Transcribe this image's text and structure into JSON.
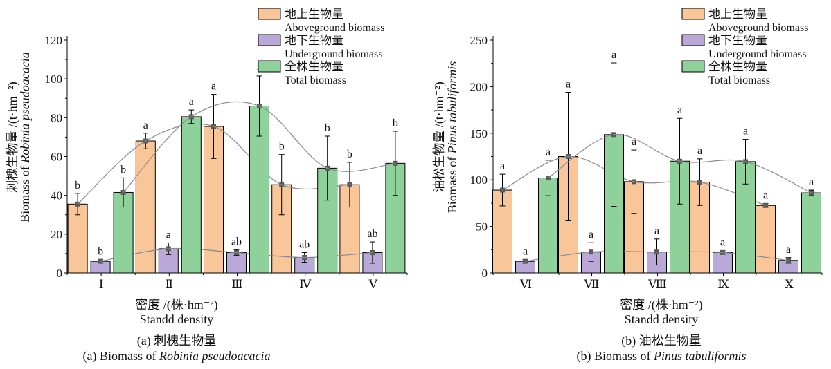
{
  "colors": {
    "above": "#f9c69a",
    "under": "#b9a8d8",
    "total": "#8fd19a",
    "marker": "#5a5a5a",
    "curve": "#8a8a8a",
    "axis": "#000000"
  },
  "chart_data": [
    {
      "type": "bar",
      "caption_cn": "(a) 刺槐生物量",
      "caption_en_prefix": "(a) Biomass of ",
      "caption_en_italic": "Robinia pseudoacacia",
      "xlabel_cn": "密度 /(株·hm⁻²)",
      "xlabel_en": "Standd density",
      "ylabel_cn": "刺槐生物量 /(t·hm⁻²)",
      "ylabel_en_prefix": "Biomass of ",
      "ylabel_en_italic": "Robinia pseudoacacia",
      "ylim": [
        0,
        120
      ],
      "yticks": [
        0,
        20,
        40,
        60,
        80,
        100,
        120
      ],
      "categories": [
        "Ⅰ",
        "Ⅱ",
        "Ⅲ",
        "Ⅳ",
        "Ⅴ"
      ],
      "series": [
        {
          "name_cn": "地上生物量",
          "name_en": "Aboveground biomass",
          "color_key": "above",
          "values": [
            35.5,
            68,
            75.5,
            45.5,
            45.5
          ],
          "err": [
            5.5,
            4,
            16.5,
            15.5,
            11.5
          ],
          "labels": [
            "b",
            "a",
            "a",
            "b",
            "b"
          ]
        },
        {
          "name_cn": "地下生物量",
          "name_en": "Underground biomass",
          "color_key": "under",
          "values": [
            6,
            12.5,
            10.5,
            8,
            10.5
          ],
          "err": [
            1,
            3,
            1.5,
            2.5,
            5.5
          ],
          "labels": [
            "b",
            "a",
            "ab",
            "ab",
            "ab"
          ]
        },
        {
          "name_cn": "全株生物量",
          "name_en": "Total biomass",
          "color_key": "total",
          "values": [
            41.5,
            80.5,
            86,
            54,
            56.5
          ],
          "err": [
            7.5,
            3.5,
            15.5,
            16.5,
            16.5
          ],
          "labels": [
            "b",
            "a",
            "a",
            "b",
            "b"
          ]
        }
      ]
    },
    {
      "type": "bar",
      "caption_cn": "(b) 油松生物量",
      "caption_en_prefix": "(b) Biomass of ",
      "caption_en_italic": "Pinus tabuliformis",
      "xlabel_cn": "密度 /(株·hm⁻²)",
      "xlabel_en": "Standd density",
      "ylabel_cn": "油松生物量 /(t·hm⁻²)",
      "ylabel_en_prefix": "Biomass of ",
      "ylabel_en_italic": "Pinus tabuliformis",
      "ylim": [
        0,
        250
      ],
      "yticks": [
        0,
        50,
        100,
        150,
        200,
        250
      ],
      "categories": [
        "Ⅵ",
        "Ⅶ",
        "Ⅷ",
        "Ⅸ",
        "Ⅹ"
      ],
      "series": [
        {
          "name_cn": "地上生物量",
          "name_en": "Aboveground biomass",
          "color_key": "above",
          "values": [
            89,
            125,
            98,
            97.5,
            72.5
          ],
          "err": [
            17,
            69,
            34,
            25,
            2
          ],
          "labels": [
            "a",
            "a",
            "a",
            "a",
            "a"
          ]
        },
        {
          "name_cn": "地下生物量",
          "name_en": "Underground biomass",
          "color_key": "under",
          "values": [
            12.5,
            22.5,
            22.5,
            22,
            13.5
          ],
          "err": [
            2,
            10,
            14,
            2,
            3
          ],
          "labels": [
            "a",
            "a",
            "a",
            "a",
            "a"
          ]
        },
        {
          "name_cn": "全株生物量",
          "name_en": "Total biomass",
          "color_key": "total",
          "values": [
            102,
            148.5,
            120,
            119.5,
            86
          ],
          "err": [
            19,
            77,
            46,
            24,
            3
          ],
          "labels": [
            "a",
            "a",
            "a",
            "a",
            "a"
          ]
        }
      ]
    }
  ]
}
